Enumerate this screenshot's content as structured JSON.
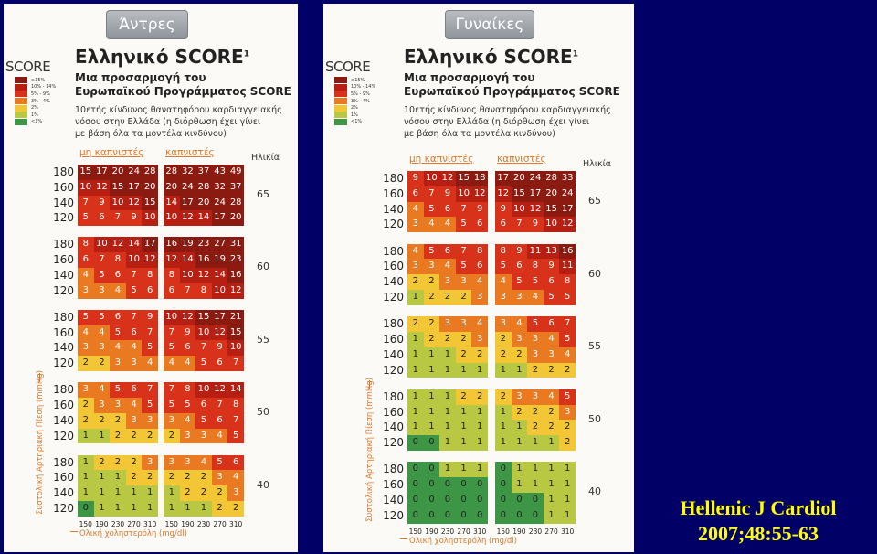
{
  "legend": [
    {
      "label": "≥15%",
      "color": "#8b1a10"
    },
    {
      "label": "10% - 14%",
      "color": "#b71f12"
    },
    {
      "label": "5% - 9%",
      "color": "#d8321a"
    },
    {
      "label": "3% - 4%",
      "color": "#ea7a22"
    },
    {
      "label": "2%",
      "color": "#f2c635"
    },
    {
      "label": "1%",
      "color": "#b8c842"
    },
    {
      "label": "<1%",
      "color": "#3d9645"
    }
  ],
  "logo": "SCORE",
  "title": "Ελληνικό SCORE",
  "title_sup": "1",
  "subtitle1": "Μια προσαρμογή του",
  "subtitle2": "Ευρωπαϊκού Προγράμματος SCORE",
  "desc1": "10ετής κίνδυνος θανατηφόρου καρδιαγγειακής",
  "desc2": "νόσου στην Ελλάδα (η διόρθωση έχει γίνει",
  "desc3": "με βάση όλα τα μοντέλα κινδύνου)",
  "col_nonsmokers": "μη καπνιστές",
  "col_smokers": "καπνιστές",
  "col_age": "Ηλικία",
  "bp_levels": [
    "180",
    "160",
    "140",
    "120"
  ],
  "cholesterol": [
    "150",
    "190",
    "230",
    "270",
    "310"
  ],
  "axis_x": "Ολική χοληστερόλη (mg/dl)",
  "axis_y": "Συστολική Αρτηριακή Πίεση (mmHg)",
  "men": {
    "tab": "Άντρες",
    "ages": [
      {
        "age": "65",
        "nonsmokers": [
          [
            "15",
            "17",
            "20",
            "24",
            "28"
          ],
          [
            "10",
            "12",
            "15",
            "17",
            "20"
          ],
          [
            "7",
            "9",
            "10",
            "12",
            "15"
          ],
          [
            "5",
            "6",
            "7",
            "9",
            "10"
          ]
        ],
        "smokers": [
          [
            "28",
            "32",
            "37",
            "43",
            "49"
          ],
          [
            "20",
            "24",
            "28",
            "32",
            "37"
          ],
          [
            "14",
            "17",
            "20",
            "24",
            "28"
          ],
          [
            "10",
            "12",
            "14",
            "17",
            "20"
          ]
        ]
      },
      {
        "age": "60",
        "nonsmokers": [
          [
            "8",
            "10",
            "12",
            "14",
            "17"
          ],
          [
            "6",
            "7",
            "8",
            "10",
            "12"
          ],
          [
            "4",
            "5",
            "6",
            "7",
            "8"
          ],
          [
            "3",
            "3",
            "4",
            "5",
            "6"
          ]
        ],
        "smokers": [
          [
            "16",
            "19",
            "23",
            "27",
            "31"
          ],
          [
            "12",
            "14",
            "16",
            "19",
            "23"
          ],
          [
            "8",
            "10",
            "12",
            "14",
            "16"
          ],
          [
            "6",
            "7",
            "8",
            "10",
            "12"
          ]
        ]
      },
      {
        "age": "55",
        "nonsmokers": [
          [
            "5",
            "5",
            "6",
            "7",
            "9"
          ],
          [
            "4",
            "4",
            "5",
            "6",
            "7"
          ],
          [
            "3",
            "3",
            "4",
            "4",
            "5"
          ],
          [
            "2",
            "2",
            "3",
            "3",
            "4"
          ]
        ],
        "smokers": [
          [
            "10",
            "12",
            "15",
            "17",
            "21"
          ],
          [
            "7",
            "9",
            "10",
            "12",
            "15"
          ],
          [
            "5",
            "6",
            "7",
            "9",
            "10"
          ],
          [
            "4",
            "4",
            "5",
            "6",
            "7"
          ]
        ]
      },
      {
        "age": "50",
        "nonsmokers": [
          [
            "3",
            "4",
            "5",
            "6",
            "7"
          ],
          [
            "2",
            "3",
            "3",
            "4",
            "5"
          ],
          [
            "2",
            "2",
            "2",
            "3",
            "3"
          ],
          [
            "1",
            "1",
            "2",
            "2",
            "2"
          ]
        ],
        "smokers": [
          [
            "7",
            "8",
            "10",
            "12",
            "14"
          ],
          [
            "5",
            "5",
            "6",
            "7",
            "8"
          ],
          [
            "3",
            "4",
            "5",
            "6",
            "7"
          ],
          [
            "2",
            "3",
            "3",
            "4",
            "5"
          ]
        ]
      },
      {
        "age": "40",
        "nonsmokers": [
          [
            "1",
            "2",
            "2",
            "2",
            "3"
          ],
          [
            "1",
            "1",
            "1",
            "2",
            "2"
          ],
          [
            "1",
            "1",
            "1",
            "1",
            "1"
          ],
          [
            "0",
            "1",
            "1",
            "1",
            "1"
          ]
        ],
        "smokers": [
          [
            "3",
            "3",
            "4",
            "5",
            "6"
          ],
          [
            "2",
            "2",
            "2",
            "3",
            "4"
          ],
          [
            "1",
            "2",
            "2",
            "2",
            "3"
          ],
          [
            "1",
            "1",
            "1",
            "2",
            "2"
          ]
        ]
      }
    ]
  },
  "women": {
    "tab": "Γυναίκες",
    "ages": [
      {
        "age": "65",
        "nonsmokers": [
          [
            "9",
            "10",
            "12",
            "15",
            "18"
          ],
          [
            "6",
            "7",
            "9",
            "10",
            "12"
          ],
          [
            "4",
            "5",
            "6",
            "7",
            "9"
          ],
          [
            "3",
            "4",
            "4",
            "5",
            "6"
          ]
        ],
        "smokers": [
          [
            "17",
            "20",
            "24",
            "28",
            "33"
          ],
          [
            "12",
            "15",
            "17",
            "20",
            "24"
          ],
          [
            "9",
            "10",
            "12",
            "15",
            "17"
          ],
          [
            "6",
            "7",
            "9",
            "10",
            "12"
          ]
        ]
      },
      {
        "age": "60",
        "nonsmokers": [
          [
            "4",
            "5",
            "6",
            "7",
            "8"
          ],
          [
            "3",
            "3",
            "4",
            "5",
            "6"
          ],
          [
            "2",
            "2",
            "3",
            "3",
            "4"
          ],
          [
            "1",
            "2",
            "2",
            "2",
            "3"
          ]
        ],
        "smokers": [
          [
            "8",
            "9",
            "11",
            "13",
            "16"
          ],
          [
            "5",
            "6",
            "8",
            "9",
            "11"
          ],
          [
            "4",
            "5",
            "5",
            "6",
            "8"
          ],
          [
            "3",
            "3",
            "4",
            "5",
            "5"
          ]
        ]
      },
      {
        "age": "55",
        "nonsmokers": [
          [
            "2",
            "2",
            "3",
            "3",
            "4"
          ],
          [
            "1",
            "2",
            "2",
            "2",
            "3"
          ],
          [
            "1",
            "1",
            "1",
            "2",
            "2"
          ],
          [
            "1",
            "1",
            "1",
            "1",
            "1"
          ]
        ],
        "smokers": [
          [
            "3",
            "4",
            "5",
            "6",
            "7"
          ],
          [
            "2",
            "3",
            "3",
            "4",
            "5"
          ],
          [
            "2",
            "2",
            "3",
            "3",
            "4"
          ],
          [
            "1",
            "1",
            "2",
            "2",
            "2"
          ]
        ]
      },
      {
        "age": "50",
        "nonsmokers": [
          [
            "1",
            "1",
            "1",
            "2",
            "2"
          ],
          [
            "1",
            "1",
            "1",
            "1",
            "1"
          ],
          [
            "1",
            "1",
            "1",
            "1",
            "1"
          ],
          [
            "0",
            "0",
            "1",
            "1",
            "1"
          ]
        ],
        "smokers": [
          [
            "2",
            "3",
            "3",
            "4",
            "5"
          ],
          [
            "1",
            "2",
            "2",
            "2",
            "3"
          ],
          [
            "1",
            "1",
            "2",
            "2",
            "2"
          ],
          [
            "1",
            "1",
            "1",
            "1",
            "2"
          ]
        ]
      },
      {
        "age": "40",
        "nonsmokers": [
          [
            "0",
            "0",
            "1",
            "1",
            "1"
          ],
          [
            "0",
            "0",
            "0",
            "0",
            "0"
          ],
          [
            "0",
            "0",
            "0",
            "0",
            "0"
          ],
          [
            "0",
            "0",
            "0",
            "0",
            "0"
          ]
        ],
        "smokers": [
          [
            "0",
            "1",
            "1",
            "1",
            "1"
          ],
          [
            "0",
            "1",
            "1",
            "1",
            "1"
          ],
          [
            "0",
            "0",
            "0",
            "1",
            "1"
          ],
          [
            "0",
            "0",
            "0",
            "1",
            "1"
          ]
        ]
      }
    ]
  },
  "citation": {
    "line1": "Hellenic J Cardiol",
    "line2": "2007;48:55-63"
  }
}
